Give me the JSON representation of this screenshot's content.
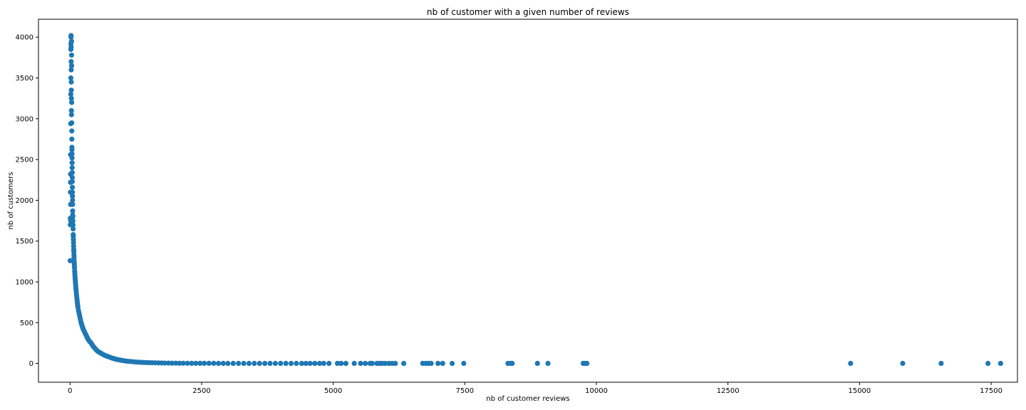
{
  "chart_data": {
    "type": "scatter",
    "title": "nb of customer with a given number of reviews",
    "xlabel": "nb of customer reviews",
    "ylabel": "nb of customers",
    "xlim": [
      -600,
      18000
    ],
    "ylim": [
      -230,
      4220
    ],
    "xticks": [
      0,
      2500,
      5000,
      7500,
      10000,
      12500,
      15000,
      17500
    ],
    "yticks": [
      0,
      500,
      1000,
      1500,
      2000,
      2500,
      3000,
      3500,
      4000
    ],
    "grid": false,
    "legend": "none",
    "marker_color": "#1f77b4",
    "series": [
      {
        "points": [
          [
            3,
            1260
          ],
          [
            5,
            1700
          ],
          [
            6,
            1780
          ],
          [
            7,
            2100
          ],
          [
            8,
            2220
          ],
          [
            9,
            2320
          ],
          [
            10,
            2560
          ],
          [
            11,
            1950
          ],
          [
            12,
            1750
          ],
          [
            13,
            2940
          ],
          [
            14,
            3300
          ],
          [
            15,
            3500
          ],
          [
            16,
            3850
          ],
          [
            17,
            3920
          ],
          [
            18,
            4000
          ],
          [
            19,
            4020
          ],
          [
            20,
            3880
          ],
          [
            21,
            3700
          ],
          [
            22,
            3600
          ],
          [
            23,
            3450
          ],
          [
            24,
            3350
          ],
          [
            25,
            3250
          ],
          [
            26,
            3100
          ],
          [
            27,
            3050
          ],
          [
            28,
            3950
          ],
          [
            29,
            3780
          ],
          [
            30,
            3650
          ],
          [
            31,
            3200
          ],
          [
            32,
            2950
          ],
          [
            33,
            2850
          ],
          [
            34,
            2750
          ],
          [
            35,
            2650
          ],
          [
            36,
            2620
          ],
          [
            37,
            2570
          ],
          [
            38,
            2520
          ],
          [
            39,
            2460
          ],
          [
            40,
            2400
          ],
          [
            41,
            2340
          ],
          [
            42,
            2280
          ],
          [
            43,
            2230
          ],
          [
            44,
            2160
          ],
          [
            45,
            2100
          ],
          [
            46,
            2050
          ],
          [
            47,
            2000
          ],
          [
            48,
            1950
          ],
          [
            49,
            1870
          ],
          [
            50,
            1820
          ],
          [
            52,
            1800
          ],
          [
            54,
            1750
          ],
          [
            56,
            1700
          ],
          [
            58,
            1650
          ],
          [
            60,
            1580
          ],
          [
            62,
            1560
          ],
          [
            64,
            1520
          ],
          [
            66,
            1480
          ],
          [
            68,
            1440
          ],
          [
            70,
            1400
          ],
          [
            72,
            1370
          ],
          [
            74,
            1330
          ],
          [
            76,
            1300
          ],
          [
            78,
            1260
          ],
          [
            80,
            1230
          ],
          [
            82,
            1200
          ],
          [
            85,
            1170
          ],
          [
            88,
            1130
          ],
          [
            91,
            1100
          ],
          [
            94,
            1070
          ],
          [
            97,
            1040
          ],
          [
            100,
            1010
          ],
          [
            104,
            980
          ],
          [
            108,
            950
          ],
          [
            112,
            920
          ],
          [
            116,
            890
          ],
          [
            120,
            860
          ],
          [
            125,
            830
          ],
          [
            130,
            800
          ],
          [
            135,
            770
          ],
          [
            140,
            740
          ],
          [
            145,
            710
          ],
          [
            150,
            690
          ],
          [
            160,
            650
          ],
          [
            170,
            620
          ],
          [
            180,
            590
          ],
          [
            190,
            560
          ],
          [
            200,
            530
          ],
          [
            210,
            500
          ],
          [
            220,
            480
          ],
          [
            230,
            460
          ],
          [
            240,
            440
          ],
          [
            250,
            420
          ],
          [
            265,
            400
          ],
          [
            280,
            380
          ],
          [
            295,
            360
          ],
          [
            310,
            340
          ],
          [
            325,
            320
          ],
          [
            340,
            300
          ],
          [
            360,
            280
          ],
          [
            380,
            265
          ],
          [
            400,
            250
          ],
          [
            420,
            230
          ],
          [
            440,
            210
          ],
          [
            460,
            195
          ],
          [
            480,
            180
          ],
          [
            500,
            165
          ],
          [
            525,
            150
          ],
          [
            550,
            140
          ],
          [
            575,
            130
          ],
          [
            600,
            120
          ],
          [
            630,
            110
          ],
          [
            660,
            100
          ],
          [
            690,
            92
          ],
          [
            720,
            85
          ],
          [
            750,
            78
          ],
          [
            780,
            70
          ],
          [
            810,
            64
          ],
          [
            840,
            58
          ],
          [
            870,
            53
          ],
          [
            900,
            48
          ],
          [
            940,
            43
          ],
          [
            980,
            38
          ],
          [
            1020,
            34
          ],
          [
            1060,
            30
          ],
          [
            1100,
            27
          ],
          [
            1150,
            24
          ],
          [
            1200,
            21
          ],
          [
            1250,
            18
          ],
          [
            1300,
            16
          ],
          [
            1350,
            14
          ],
          [
            1400,
            12
          ],
          [
            1450,
            11
          ],
          [
            1500,
            10
          ],
          [
            1560,
            9
          ],
          [
            1620,
            8
          ],
          [
            1680,
            7
          ],
          [
            1740,
            6
          ],
          [
            1800,
            5
          ],
          [
            1870,
            5
          ],
          [
            1940,
            4
          ],
          [
            2010,
            4
          ],
          [
            2080,
            3
          ],
          [
            2150,
            3
          ],
          [
            2230,
            3
          ],
          [
            2310,
            2
          ],
          [
            2390,
            2
          ],
          [
            2470,
            2
          ],
          [
            2550,
            2
          ],
          [
            2640,
            2
          ],
          [
            2730,
            2
          ],
          [
            2820,
            1
          ],
          [
            2910,
            1
          ],
          [
            3000,
            1
          ],
          [
            3100,
            1
          ],
          [
            3200,
            1
          ],
          [
            3300,
            1
          ],
          [
            3400,
            1
          ],
          [
            3500,
            1
          ],
          [
            3600,
            1
          ],
          [
            3700,
            1
          ],
          [
            3800,
            1
          ],
          [
            3900,
            1
          ],
          [
            4000,
            1
          ],
          [
            4100,
            1
          ],
          [
            4200,
            1
          ],
          [
            4300,
            1
          ],
          [
            4400,
            1
          ],
          [
            4480,
            1
          ],
          [
            4560,
            1
          ],
          [
            4650,
            1
          ],
          [
            4740,
            1
          ],
          [
            4820,
            1
          ],
          [
            4920,
            1
          ],
          [
            5080,
            1
          ],
          [
            5150,
            1
          ],
          [
            5240,
            1
          ],
          [
            5400,
            1
          ],
          [
            5520,
            1
          ],
          [
            5610,
            1
          ],
          [
            5700,
            1
          ],
          [
            5740,
            1
          ],
          [
            5830,
            1
          ],
          [
            5880,
            1
          ],
          [
            5930,
            1
          ],
          [
            5990,
            1
          ],
          [
            6060,
            1
          ],
          [
            6120,
            1
          ],
          [
            6180,
            1
          ],
          [
            6340,
            1
          ],
          [
            6700,
            1
          ],
          [
            6760,
            1
          ],
          [
            6810,
            1
          ],
          [
            6860,
            1
          ],
          [
            6990,
            1
          ],
          [
            7080,
            1
          ],
          [
            7260,
            1
          ],
          [
            7480,
            1
          ],
          [
            8320,
            1
          ],
          [
            8370,
            1
          ],
          [
            8400,
            1
          ],
          [
            8880,
            1
          ],
          [
            9080,
            1
          ],
          [
            9750,
            1
          ],
          [
            9780,
            1
          ],
          [
            9820,
            1
          ],
          [
            14830,
            1
          ],
          [
            15820,
            1
          ],
          [
            16550,
            1
          ],
          [
            17440,
            1
          ],
          [
            17680,
            1
          ]
        ]
      }
    ]
  }
}
